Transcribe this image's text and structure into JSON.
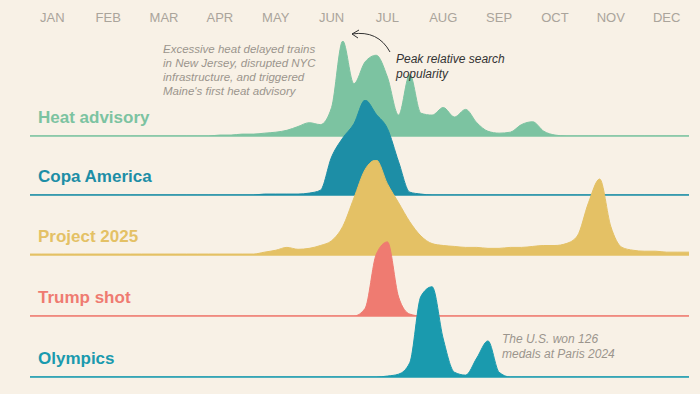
{
  "chart_data": {
    "type": "ridgeline",
    "categories": [
      null,
      null,
      "JAN",
      null,
      null,
      null,
      null,
      "FEB",
      null,
      null,
      null,
      null,
      "MAR",
      null,
      null,
      null,
      null,
      "APR",
      null,
      null,
      null,
      null,
      "MAY",
      null,
      null,
      null,
      null,
      "JUN",
      null,
      null,
      null,
      null,
      "JUL",
      null,
      null,
      null,
      null,
      "AUG",
      null,
      null,
      null,
      null,
      "SEP",
      null,
      null,
      null,
      null,
      "OCT",
      null,
      null,
      null,
      null,
      "NOV",
      null,
      null,
      null,
      null,
      "DEC",
      null,
      null
    ],
    "ylim": [
      0,
      100
    ],
    "grid": true,
    "tick_labels": "x",
    "series": [
      {
        "name": "Heat advisory",
        "color": "#7cc3a1",
        "values": [
          0,
          0,
          0,
          0,
          0,
          0,
          0,
          0,
          0,
          0,
          0,
          0,
          0,
          0,
          0,
          0,
          0,
          1,
          1,
          2,
          2,
          3,
          4,
          6,
          10,
          14,
          12,
          30,
          100,
          55,
          78,
          85,
          62,
          22,
          65,
          24,
          22,
          30,
          20,
          28,
          14,
          5,
          3,
          4,
          12,
          15,
          5,
          1,
          0,
          0,
          0,
          0,
          0,
          0,
          0,
          0,
          0,
          0,
          0,
          0
        ]
      },
      {
        "name": "Copa America",
        "color": "#1d8ea6",
        "values": [
          0,
          0,
          0,
          0,
          0,
          0,
          0,
          0,
          0,
          0,
          0,
          0,
          0,
          0,
          0,
          0,
          0,
          0,
          0,
          0,
          0,
          1,
          1,
          1,
          1,
          2,
          5,
          40,
          60,
          75,
          100,
          85,
          70,
          35,
          3,
          1,
          0,
          0,
          0,
          0,
          0,
          0,
          0,
          0,
          0,
          0,
          0,
          0,
          0,
          0,
          0,
          0,
          0,
          0,
          0,
          0,
          0,
          0,
          0,
          0
        ]
      },
      {
        "name": "Project 2025",
        "color": "#e4c165",
        "values": [
          1,
          1,
          1,
          1,
          1,
          1,
          1,
          1,
          1,
          1,
          1,
          1,
          1,
          1,
          1,
          1,
          1,
          1,
          1,
          1,
          1,
          3,
          5,
          8,
          6,
          7,
          10,
          15,
          30,
          60,
          90,
          100,
          75,
          55,
          35,
          20,
          12,
          10,
          9,
          8,
          8,
          7,
          7,
          8,
          8,
          9,
          10,
          10,
          12,
          20,
          55,
          80,
          30,
          8,
          5,
          4,
          4,
          3,
          3,
          3
        ]
      },
      {
        "name": "Trump shot",
        "color": "#ef7b71",
        "values": [
          0,
          0,
          0,
          0,
          0,
          0,
          0,
          0,
          0,
          0,
          0,
          0,
          0,
          0,
          0,
          0,
          0,
          0,
          0,
          0,
          0,
          0,
          0,
          0,
          0,
          0,
          0,
          0,
          0,
          0,
          8,
          65,
          78,
          20,
          2,
          0,
          0,
          0,
          0,
          0,
          0,
          0,
          0,
          0,
          0,
          0,
          0,
          0,
          0,
          0,
          0,
          0,
          0,
          0,
          0,
          0,
          0,
          0,
          0,
          0
        ]
      },
      {
        "name": "Olympics",
        "color": "#1a9aae",
        "values": [
          0,
          0,
          0,
          0,
          0,
          0,
          0,
          0,
          0,
          0,
          0,
          0,
          0,
          0,
          0,
          0,
          0,
          0,
          0,
          0,
          0,
          0,
          0,
          0,
          0,
          0,
          0,
          0,
          0,
          0,
          0,
          0,
          1,
          3,
          15,
          85,
          95,
          40,
          5,
          2,
          20,
          38,
          5,
          0,
          0,
          0,
          0,
          0,
          0,
          0,
          0,
          0,
          0,
          0,
          0,
          0,
          0,
          0,
          0,
          0
        ]
      }
    ],
    "annotations": [
      {
        "text": "Excessive heat delayed trains in New Jersey, disrupted NYC infrastructure, and triggered Maine's first heat advisory"
      },
      {
        "text": "Peak relative search popularity"
      },
      {
        "text": "The U.S. won 126 medals at Paris 2024"
      }
    ]
  }
}
